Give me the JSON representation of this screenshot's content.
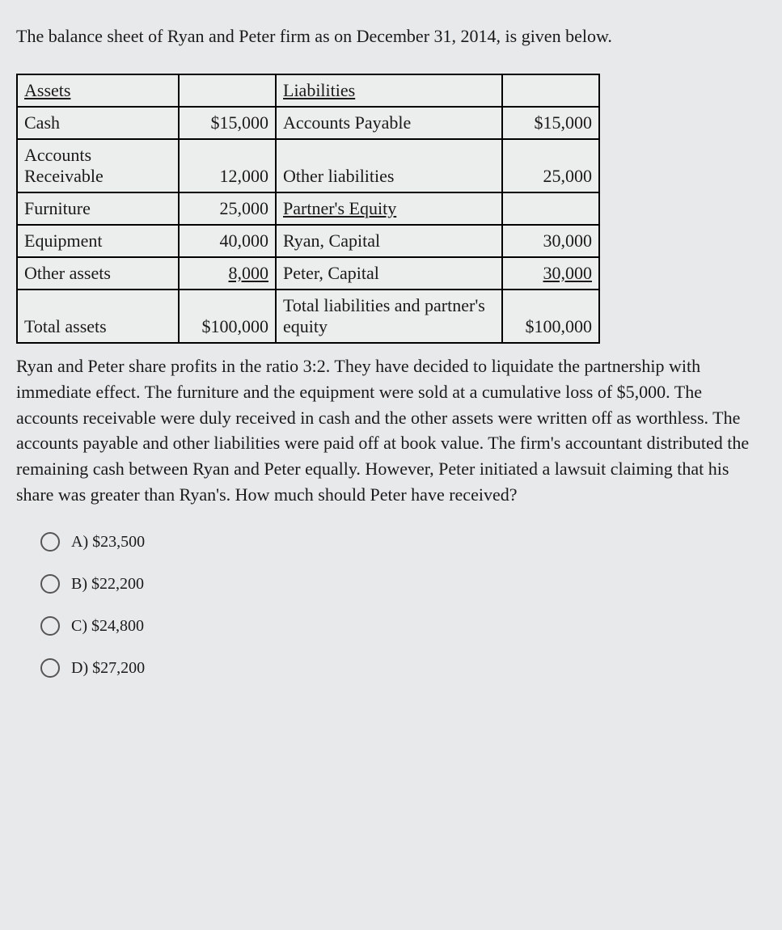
{
  "intro": "The balance sheet of Ryan and Peter firm as on December 31, 2014, is given below.",
  "table": {
    "headers": {
      "assets": "Assets",
      "liabilities": "Liabilities"
    },
    "rows": [
      {
        "a": "Cash",
        "av": "$15,000",
        "l": "Accounts Payable",
        "lv": "$15,000"
      },
      {
        "a": "Accounts Receivable",
        "av": "12,000",
        "l": "Other liabilities",
        "lv": "25,000"
      },
      {
        "a": "Furniture",
        "av": "25,000",
        "l": "Partner's Equity",
        "lv": "",
        "l_underline": true
      },
      {
        "a": "Equipment",
        "av": "40,000",
        "l": "Ryan, Capital",
        "lv": "30,000"
      },
      {
        "a": "Other assets",
        "av": "8,000",
        "l": "Peter, Capital",
        "lv": "30,000",
        "av_underline": true,
        "lv_underline": true
      },
      {
        "a": "Total assets",
        "av": "$100,000",
        "l": "Total liabilities and partner's equity",
        "lv": "$100,000"
      }
    ]
  },
  "paragraph": "Ryan and Peter share profits in the ratio 3:2. They have decided to liquidate the partnership with immediate effect. The furniture and the equipment were sold at a cumulative loss of $5,000. The accounts receivable were duly received in cash and the other assets were written off as worthless. The accounts payable and other liabilities were paid off at book value. The firm's accountant distributed the remaining cash between Ryan and Peter equally. However, Peter initiated a lawsuit claiming that his share was greater than Ryan's. How much should Peter have received?",
  "options": {
    "a": "A) $23,500",
    "b": "B) $22,200",
    "c": "C) $24,800",
    "d": "D) $27,200"
  }
}
